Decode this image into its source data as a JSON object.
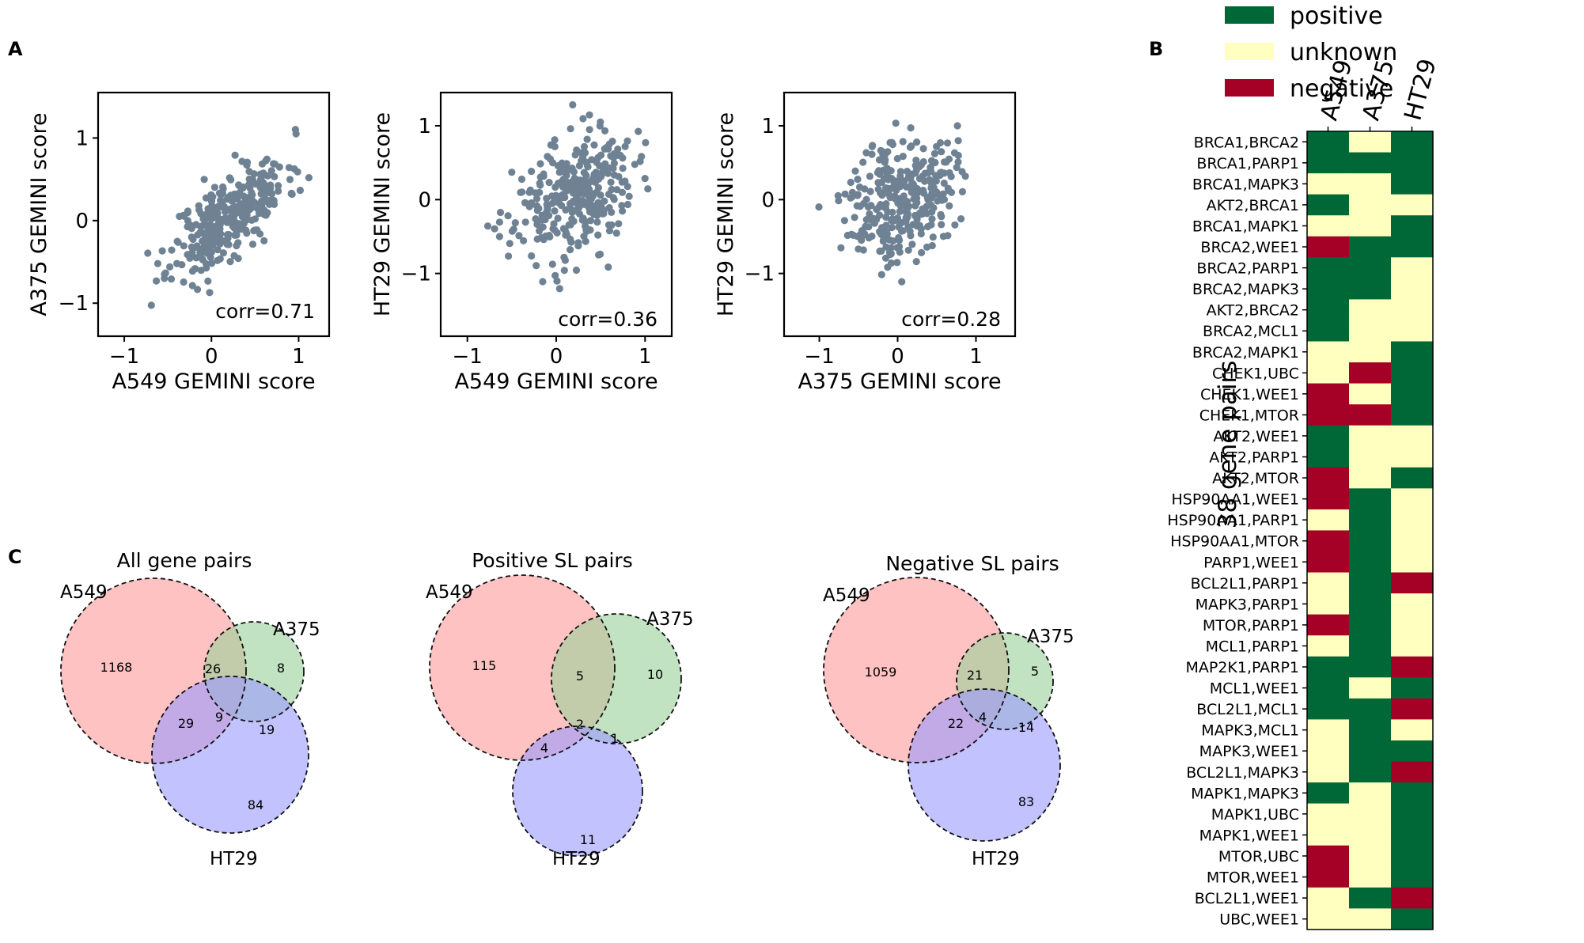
{
  "panel_labels": {
    "a": "A",
    "b": "B",
    "c": "C"
  },
  "colors": {
    "point": "#6f8294",
    "positive": "#006837",
    "unknown": "#ffffbf",
    "negative": "#a50026",
    "venn_a549": "#ff9a9a",
    "venn_a375": "#9ad19a",
    "venn_ht29": "#9a9aff"
  },
  "chart_data": [
    {
      "id": "scatter1",
      "type": "scatter",
      "xlabel": "A549 GEMINI score",
      "ylabel": "A375 GEMINI score",
      "xlim": [
        -1.3,
        1.35
      ],
      "ylim": [
        -1.4,
        1.55
      ],
      "xticks": [
        {
          "v": -1,
          "label": "−1"
        },
        {
          "v": 0,
          "label": "0"
        },
        {
          "v": 1,
          "label": "1"
        }
      ],
      "yticks": [
        {
          "v": -1,
          "label": "−1"
        },
        {
          "v": 0,
          "label": "0"
        },
        {
          "v": 1,
          "label": "1"
        }
      ],
      "annotation": "corr=0.71",
      "correlation": 0.71,
      "n_points": 320,
      "spread": {
        "xmean": 0.2,
        "xsd": 0.33,
        "ysd": 0.3,
        "slope": 0.72
      }
    },
    {
      "id": "scatter2",
      "type": "scatter",
      "xlabel": "A549 GEMINI score",
      "ylabel": "HT29 GEMINI score",
      "xlim": [
        -1.3,
        1.3
      ],
      "ylim": [
        -1.85,
        1.45
      ],
      "xticks": [
        {
          "v": -1,
          "label": "−1"
        },
        {
          "v": 0,
          "label": "0"
        },
        {
          "v": 1,
          "label": "1"
        }
      ],
      "yticks": [
        {
          "v": -1,
          "label": "−1"
        },
        {
          "v": 0,
          "label": "0"
        },
        {
          "v": 1,
          "label": "1"
        }
      ],
      "annotation": "corr=0.36",
      "correlation": 0.36,
      "n_points": 320,
      "spread": {
        "xmean": 0.2,
        "xsd": 0.33,
        "ysd": 0.36,
        "slope": 0.38
      }
    },
    {
      "id": "scatter3",
      "type": "scatter",
      "xlabel": "A375 GEMINI score",
      "ylabel": "HT29 GEMINI score",
      "xlim": [
        -1.45,
        1.5
      ],
      "ylim": [
        -1.85,
        1.45
      ],
      "xticks": [
        {
          "v": -1,
          "label": "−1"
        },
        {
          "v": 0,
          "label": "0"
        },
        {
          "v": 1,
          "label": "1"
        }
      ],
      "yticks": [
        {
          "v": -1,
          "label": "−1"
        },
        {
          "v": 0,
          "label": "0"
        },
        {
          "v": 1,
          "label": "1"
        }
      ],
      "annotation": "corr=0.28",
      "correlation": 0.28,
      "n_points": 320,
      "spread": {
        "xmean": 0.05,
        "xsd": 0.34,
        "ysd": 0.36,
        "slope": 0.3
      }
    },
    {
      "id": "heatmap",
      "type": "heatmap",
      "ylabel": "38 gene pairs",
      "columns": [
        "A549",
        "A375",
        "HT29"
      ],
      "legend": [
        {
          "key": "positive",
          "label": "positive"
        },
        {
          "key": "unknown",
          "label": "unknown"
        },
        {
          "key": "negative",
          "label": "negative"
        }
      ],
      "rows": [
        {
          "label": "BRCA1,BRCA2",
          "values": [
            "positive",
            "unknown",
            "positive"
          ]
        },
        {
          "label": "BRCA1,PARP1",
          "values": [
            "positive",
            "positive",
            "positive"
          ]
        },
        {
          "label": "BRCA1,MAPK3",
          "values": [
            "unknown",
            "unknown",
            "positive"
          ]
        },
        {
          "label": "AKT2,BRCA1",
          "values": [
            "positive",
            "unknown",
            "unknown"
          ]
        },
        {
          "label": "BRCA1,MAPK1",
          "values": [
            "unknown",
            "unknown",
            "positive"
          ]
        },
        {
          "label": "BRCA2,WEE1",
          "values": [
            "negative",
            "positive",
            "positive"
          ]
        },
        {
          "label": "BRCA2,PARP1",
          "values": [
            "positive",
            "positive",
            "unknown"
          ]
        },
        {
          "label": "BRCA2,MAPK3",
          "values": [
            "positive",
            "positive",
            "unknown"
          ]
        },
        {
          "label": "AKT2,BRCA2",
          "values": [
            "positive",
            "unknown",
            "unknown"
          ]
        },
        {
          "label": "BRCA2,MCL1",
          "values": [
            "positive",
            "unknown",
            "unknown"
          ]
        },
        {
          "label": "BRCA2,MAPK1",
          "values": [
            "unknown",
            "unknown",
            "positive"
          ]
        },
        {
          "label": "CHEK1,UBC",
          "values": [
            "unknown",
            "negative",
            "positive"
          ]
        },
        {
          "label": "CHEK1,WEE1",
          "values": [
            "negative",
            "unknown",
            "positive"
          ]
        },
        {
          "label": "CHEK1,MTOR",
          "values": [
            "negative",
            "negative",
            "positive"
          ]
        },
        {
          "label": "AKT2,WEE1",
          "values": [
            "positive",
            "unknown",
            "unknown"
          ]
        },
        {
          "label": "AKT2,PARP1",
          "values": [
            "positive",
            "unknown",
            "unknown"
          ]
        },
        {
          "label": "AKT2,MTOR",
          "values": [
            "negative",
            "unknown",
            "positive"
          ]
        },
        {
          "label": "HSP90AA1,WEE1",
          "values": [
            "negative",
            "positive",
            "unknown"
          ]
        },
        {
          "label": "HSP90AA1,PARP1",
          "values": [
            "unknown",
            "positive",
            "unknown"
          ]
        },
        {
          "label": "HSP90AA1,MTOR",
          "values": [
            "negative",
            "positive",
            "unknown"
          ]
        },
        {
          "label": "PARP1,WEE1",
          "values": [
            "negative",
            "positive",
            "unknown"
          ]
        },
        {
          "label": "BCL2L1,PARP1",
          "values": [
            "unknown",
            "positive",
            "negative"
          ]
        },
        {
          "label": "MAPK3,PARP1",
          "values": [
            "unknown",
            "positive",
            "unknown"
          ]
        },
        {
          "label": "MTOR,PARP1",
          "values": [
            "negative",
            "positive",
            "unknown"
          ]
        },
        {
          "label": "MCL1,PARP1",
          "values": [
            "unknown",
            "positive",
            "unknown"
          ]
        },
        {
          "label": "MAP2K1,PARP1",
          "values": [
            "positive",
            "positive",
            "negative"
          ]
        },
        {
          "label": "MCL1,WEE1",
          "values": [
            "positive",
            "unknown",
            "positive"
          ]
        },
        {
          "label": "BCL2L1,MCL1",
          "values": [
            "positive",
            "positive",
            "negative"
          ]
        },
        {
          "label": "MAPK3,MCL1",
          "values": [
            "unknown",
            "positive",
            "unknown"
          ]
        },
        {
          "label": "MAPK3,WEE1",
          "values": [
            "unknown",
            "positive",
            "positive"
          ]
        },
        {
          "label": "BCL2L1,MAPK3",
          "values": [
            "unknown",
            "positive",
            "negative"
          ]
        },
        {
          "label": "MAPK1,MAPK3",
          "values": [
            "positive",
            "unknown",
            "positive"
          ]
        },
        {
          "label": "MAPK1,UBC",
          "values": [
            "unknown",
            "unknown",
            "positive"
          ]
        },
        {
          "label": "MAPK1,WEE1",
          "values": [
            "unknown",
            "unknown",
            "positive"
          ]
        },
        {
          "label": "MTOR,UBC",
          "values": [
            "negative",
            "unknown",
            "positive"
          ]
        },
        {
          "label": "MTOR,WEE1",
          "values": [
            "negative",
            "unknown",
            "positive"
          ]
        },
        {
          "label": "BCL2L1,WEE1",
          "values": [
            "unknown",
            "positive",
            "negative"
          ]
        },
        {
          "label": "UBC,WEE1",
          "values": [
            "unknown",
            "unknown",
            "positive"
          ]
        }
      ]
    },
    {
      "id": "venn1",
      "type": "venn",
      "title": "All gene pairs",
      "sets": {
        "A549": "A549",
        "A375": "A375",
        "HT29": "HT29"
      },
      "regions": {
        "A549_only": "1168",
        "A375_only": "8",
        "HT29_only": "84",
        "A549_A375": "26",
        "A549_HT29": "29",
        "A375_HT29": "19",
        "all": "9"
      }
    },
    {
      "id": "venn2",
      "type": "venn",
      "title": "Positive SL pairs",
      "sets": {
        "A549": "A549",
        "A375": "A375",
        "HT29": "HT29"
      },
      "regions": {
        "A549_only": "115",
        "A375_only": "10",
        "HT29_only": "11",
        "A549_A375": "5",
        "A549_HT29": "4",
        "A375_HT29": "1",
        "all": "2"
      }
    },
    {
      "id": "venn3",
      "type": "venn",
      "title": "Negative SL pairs",
      "sets": {
        "A549": "A549",
        "A375": "A375",
        "HT29": "HT29"
      },
      "regions": {
        "A549_only": "1059",
        "A375_only": "5",
        "HT29_only": "83",
        "A549_A375": "21",
        "A549_HT29": "22",
        "A375_HT29": "14",
        "all": "4"
      }
    }
  ]
}
